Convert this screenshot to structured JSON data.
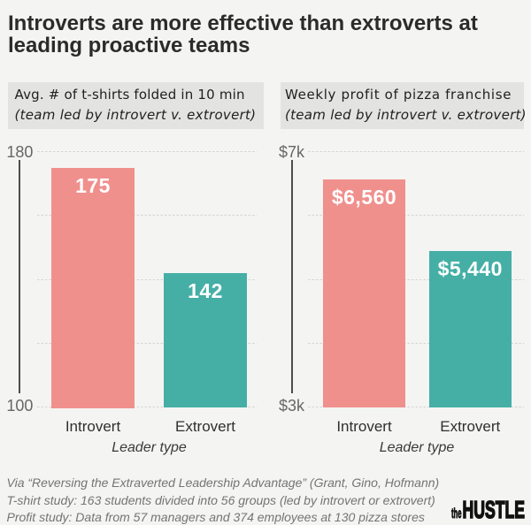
{
  "header": {
    "title": "Introverts are more effective than extroverts at leading proactive teams",
    "title_lines": [
      "Introverts are more effective than extroverts at",
      "leading proactive teams"
    ]
  },
  "footer": {
    "lines": [
      "Via “Reversing the Extraverted Leadership Advantage” (Grant, Gino, Hofmann)",
      "T-shirt study: 163 students divided into 56 groups (led by introvert or extrovert)",
      "Profit study: Data from 57 managers and 374 employees at 130 pizza stores"
    ]
  },
  "logo": {
    "prefix": "the",
    "name": "HUSTLE",
    "color": "#111111"
  },
  "colors": {
    "background": "#f4f4f3",
    "panel_header_background": "#e3e3e1",
    "introvert_bar": "#f0908d",
    "extrovert_bar": "#45afa6",
    "gridline": "#d4d4d2",
    "axis_line": "#4d4d4d",
    "axis_label": "#676767"
  },
  "chart_data": [
    {
      "type": "bar",
      "title": "Avg. # of t-shirts folded in 10 min",
      "subtitle": "(team led by introvert v. extrovert)",
      "categories": [
        "Introvert",
        "Extrovert"
      ],
      "values": [
        175,
        142
      ],
      "value_labels": [
        "175",
        "142"
      ],
      "bar_colors": [
        "#f0908d",
        "#45afa6"
      ],
      "xlabel": "Leader type",
      "ylabel": "",
      "ylim": [
        100,
        180
      ],
      "ytick_interval": 20,
      "ymax_label": "180",
      "ymin_label": "100",
      "grid": "dashed horizontal",
      "legend": "none"
    },
    {
      "type": "bar",
      "title": "Weekly profit of pizza franchise",
      "subtitle": "(team led by introvert v. extrovert)",
      "categories": [
        "Introvert",
        "Extrovert"
      ],
      "values": [
        6560,
        5440
      ],
      "value_labels": [
        "$6,560",
        "$5,440"
      ],
      "bar_colors": [
        "#f0908d",
        "#45afa6"
      ],
      "xlabel": "Leader type",
      "ylabel": "",
      "ylim": [
        3000,
        7000
      ],
      "ytick_interval": 1000,
      "ymax_label": "$7k",
      "ymin_label": "$3k",
      "grid": "dashed horizontal",
      "legend": "none"
    }
  ]
}
